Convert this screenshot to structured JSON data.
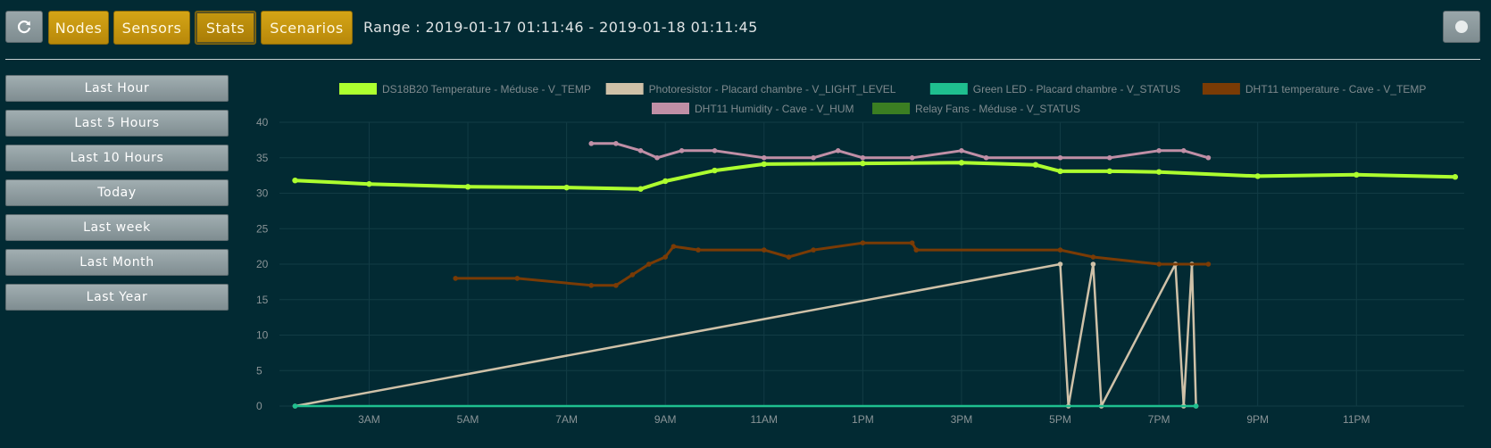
{
  "toolbar": {
    "refresh_icon": "refresh-icon",
    "nav": [
      {
        "label": "Nodes",
        "active": false
      },
      {
        "label": "Sensors",
        "active": false
      },
      {
        "label": "Stats",
        "active": true
      },
      {
        "label": "Scenarios",
        "active": false
      }
    ],
    "range_text": "Range : 2019-01-17 01:11:46 - 2019-01-18 01:11:45",
    "toggle_icon": "circle-icon"
  },
  "sidebar": {
    "items": [
      {
        "label": "Last Hour"
      },
      {
        "label": "Last 5 Hours"
      },
      {
        "label": "Last 10 Hours"
      },
      {
        "label": "Today"
      },
      {
        "label": "Last week"
      },
      {
        "label": "Last Month"
      },
      {
        "label": "Last Year"
      }
    ]
  },
  "chart_data": {
    "type": "line",
    "grid": true,
    "legend_position": "top",
    "ylim": [
      0,
      40
    ],
    "y_ticks": [
      0,
      5,
      10,
      15,
      20,
      25,
      30,
      35,
      40
    ],
    "xlim": [
      "2019-01-17 01:11",
      "2019-01-18 01:11"
    ],
    "x_ticks": [
      {
        "t": "2019-01-17 03:00",
        "label": "3AM"
      },
      {
        "t": "2019-01-17 05:00",
        "label": "5AM"
      },
      {
        "t": "2019-01-17 07:00",
        "label": "7AM"
      },
      {
        "t": "2019-01-17 09:00",
        "label": "9AM"
      },
      {
        "t": "2019-01-17 11:00",
        "label": "11AM"
      },
      {
        "t": "2019-01-17 13:00",
        "label": "1PM"
      },
      {
        "t": "2019-01-17 15:00",
        "label": "3PM"
      },
      {
        "t": "2019-01-17 17:00",
        "label": "5PM"
      },
      {
        "t": "2019-01-17 19:00",
        "label": "7PM"
      },
      {
        "t": "2019-01-17 21:00",
        "label": "9PM"
      },
      {
        "t": "2019-01-17 23:00",
        "label": "11PM"
      }
    ],
    "series": [
      {
        "name": "DS18B20 Temperature - Méduse - V_TEMP",
        "color": "#adff2f",
        "width": 4,
        "points": [
          [
            "2019-01-17 01:30",
            31.8
          ],
          [
            "2019-01-17 03:00",
            31.3
          ],
          [
            "2019-01-17 05:00",
            30.9
          ],
          [
            "2019-01-17 07:00",
            30.8
          ],
          [
            "2019-01-17 08:30",
            30.6
          ],
          [
            "2019-01-17 09:00",
            31.7
          ],
          [
            "2019-01-17 10:00",
            33.2
          ],
          [
            "2019-01-17 11:00",
            34.1
          ],
          [
            "2019-01-17 13:00",
            34.2
          ],
          [
            "2019-01-17 15:00",
            34.3
          ],
          [
            "2019-01-17 16:30",
            34.0
          ],
          [
            "2019-01-17 17:00",
            33.1
          ],
          [
            "2019-01-17 18:00",
            33.1
          ],
          [
            "2019-01-17 19:00",
            33.0
          ],
          [
            "2019-01-17 21:00",
            32.4
          ],
          [
            "2019-01-17 23:00",
            32.6
          ],
          [
            "2019-01-18 01:00",
            32.3
          ]
        ]
      },
      {
        "name": "Photoresistor - Placard chambre - V_LIGHT_LEVEL",
        "color": "#cfc1a8",
        "width": 2.5,
        "points": [
          [
            "2019-01-17 01:30",
            0
          ],
          [
            "2019-01-17 17:00",
            20
          ],
          [
            "2019-01-17 17:10",
            0
          ],
          [
            "2019-01-17 17:40",
            20
          ],
          [
            "2019-01-17 17:50",
            0
          ],
          [
            "2019-01-17 19:20",
            20
          ],
          [
            "2019-01-17 19:30",
            0
          ],
          [
            "2019-01-17 19:40",
            20
          ],
          [
            "2019-01-17 19:45",
            0
          ]
        ]
      },
      {
        "name": "Green LED - Placard chambre - V_STATUS",
        "color": "#1fbf8f",
        "width": 2.5,
        "points": [
          [
            "2019-01-17 01:30",
            0
          ],
          [
            "2019-01-17 19:45",
            0
          ]
        ]
      },
      {
        "name": "DHT11 temperature - Cave - V_TEMP",
        "color": "#7a3b05",
        "width": 3,
        "points": [
          [
            "2019-01-17 04:45",
            18
          ],
          [
            "2019-01-17 06:00",
            18
          ],
          [
            "2019-01-17 07:30",
            17
          ],
          [
            "2019-01-17 08:00",
            17
          ],
          [
            "2019-01-17 08:20",
            18.5
          ],
          [
            "2019-01-17 08:40",
            20
          ],
          [
            "2019-01-17 09:00",
            21
          ],
          [
            "2019-01-17 09:10",
            22.5
          ],
          [
            "2019-01-17 09:40",
            22
          ],
          [
            "2019-01-17 11:00",
            22
          ],
          [
            "2019-01-17 11:30",
            21
          ],
          [
            "2019-01-17 12:00",
            22
          ],
          [
            "2019-01-17 13:00",
            23
          ],
          [
            "2019-01-17 14:00",
            23
          ],
          [
            "2019-01-17 14:05",
            22
          ],
          [
            "2019-01-17 17:00",
            22
          ],
          [
            "2019-01-17 17:40",
            21
          ],
          [
            "2019-01-17 19:00",
            20
          ],
          [
            "2019-01-17 20:00",
            20
          ]
        ]
      },
      {
        "name": "DHT11 Humidity - Cave - V_HUM",
        "color": "#c08fa6",
        "width": 3,
        "points": [
          [
            "2019-01-17 07:30",
            37
          ],
          [
            "2019-01-17 08:00",
            37
          ],
          [
            "2019-01-17 08:30",
            36
          ],
          [
            "2019-01-17 08:50",
            35
          ],
          [
            "2019-01-17 09:20",
            36
          ],
          [
            "2019-01-17 10:00",
            36
          ],
          [
            "2019-01-17 11:00",
            35
          ],
          [
            "2019-01-17 12:00",
            35
          ],
          [
            "2019-01-17 12:30",
            36
          ],
          [
            "2019-01-17 13:00",
            35
          ],
          [
            "2019-01-17 14:00",
            35
          ],
          [
            "2019-01-17 15:00",
            36
          ],
          [
            "2019-01-17 15:30",
            35
          ],
          [
            "2019-01-17 17:00",
            35
          ],
          [
            "2019-01-17 18:00",
            35
          ],
          [
            "2019-01-17 19:00",
            36
          ],
          [
            "2019-01-17 19:30",
            36
          ],
          [
            "2019-01-17 20:00",
            35
          ]
        ]
      },
      {
        "name": "Relay Fans - Méduse - V_STATUS",
        "color": "#3b7e22",
        "width": 2.5,
        "points": []
      }
    ]
  }
}
